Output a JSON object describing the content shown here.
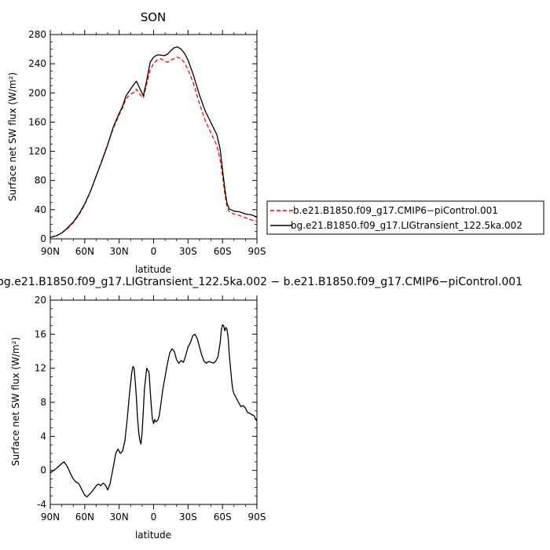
{
  "chart_data": [
    {
      "type": "line",
      "title": "SON",
      "xlabel": "latitude",
      "ylabel": "Surface net SW flux (W/m²)",
      "ylim": [
        0,
        280
      ],
      "yticks": [
        0,
        40,
        80,
        120,
        160,
        200,
        240,
        280
      ],
      "xlim": [
        90,
        -90
      ],
      "xticks": [
        {
          "value": 90,
          "label": "90N"
        },
        {
          "value": 60,
          "label": "60N"
        },
        {
          "value": 30,
          "label": "30N"
        },
        {
          "value": 0,
          "label": "0"
        },
        {
          "value": -30,
          "label": "30S"
        },
        {
          "value": -60,
          "label": "60S"
        },
        {
          "value": -90,
          "label": "90S"
        }
      ],
      "grid": false,
      "legend_position": "right",
      "series": [
        {
          "name": "b.e21.B1850.f09_g17.CMIP6−piControl.001",
          "color": "#ff0000",
          "dash": "dashed",
          "x": [
            90,
            85,
            80,
            75,
            70,
            65,
            60,
            55,
            50,
            45,
            40,
            35,
            30,
            27,
            24,
            21,
            18,
            15,
            12,
            9,
            6,
            3,
            0,
            -3,
            -6,
            -9,
            -12,
            -15,
            -18,
            -21,
            -24,
            -27,
            -30,
            -35,
            -40,
            -45,
            -50,
            -55,
            -58,
            -60,
            -62,
            -64,
            -66,
            -70,
            -75,
            -80,
            -85,
            -90
          ],
          "y": [
            2,
            4,
            8,
            14,
            22,
            33,
            47,
            65,
            86,
            108,
            130,
            152,
            170,
            180,
            192,
            197,
            200,
            205,
            198,
            193,
            212,
            232,
            240,
            245,
            247,
            244,
            242,
            245,
            247,
            249,
            247,
            241,
            232,
            212,
            185,
            162,
            145,
            128,
            108,
            86,
            62,
            44,
            37,
            34,
            32,
            29,
            26,
            24
          ]
        },
        {
          "name": "bg.e21.B1850.f09_g17.LIGtransient_122.5ka.002",
          "color": "#000000",
          "dash": "solid",
          "x": [
            90,
            85,
            80,
            75,
            70,
            65,
            60,
            55,
            50,
            45,
            40,
            35,
            30,
            27,
            24,
            21,
            18,
            15,
            12,
            9,
            6,
            3,
            0,
            -3,
            -6,
            -9,
            -12,
            -15,
            -18,
            -21,
            -24,
            -27,
            -30,
            -35,
            -40,
            -45,
            -50,
            -55,
            -58,
            -60,
            -62,
            -64,
            -66,
            -70,
            -75,
            -80,
            -85,
            -90
          ],
          "y": [
            2,
            4,
            8,
            15,
            23,
            34,
            48,
            65,
            86,
            107,
            129,
            154,
            172,
            182,
            196,
            203,
            210,
            216,
            206,
            196,
            217,
            242,
            249,
            252,
            252,
            251,
            253,
            258,
            262,
            263,
            260,
            254,
            245,
            223,
            197,
            175,
            159,
            143,
            123,
            95,
            69,
            48,
            41,
            38,
            37,
            34,
            33,
            30
          ]
        }
      ]
    },
    {
      "type": "line",
      "title": "bg.e21.B1850.f09_g17.LIGtransient_122.5ka.002 − b.e21.B1850.f09_g17.CMIP6−piControl.001",
      "xlabel": "latitude",
      "ylabel": "Surface net SW flux (W/m²)",
      "ylim": [
        -4,
        20
      ],
      "yticks": [
        -4,
        0,
        4,
        8,
        12,
        16,
        20
      ],
      "xlim": [
        90,
        -90
      ],
      "xticks": [
        {
          "value": 90,
          "label": "90N"
        },
        {
          "value": 60,
          "label": "60N"
        },
        {
          "value": 30,
          "label": "30N"
        },
        {
          "value": 0,
          "label": "0"
        },
        {
          "value": -30,
          "label": "30S"
        },
        {
          "value": -60,
          "label": "60S"
        },
        {
          "value": -90,
          "label": "90S"
        }
      ],
      "grid": false,
      "series": [
        {
          "color": "#000000",
          "dash": "solid",
          "x": [
            90,
            85,
            80,
            78,
            75,
            72,
            70,
            68,
            65,
            62,
            60,
            58,
            55,
            52,
            50,
            48,
            46,
            44,
            42,
            40,
            38,
            35,
            33,
            31,
            29,
            27,
            25,
            23,
            21,
            19,
            18,
            17,
            16,
            15,
            14,
            13,
            12,
            11,
            10,
            9,
            8,
            6,
            4,
            3,
            2,
            1,
            0,
            -1,
            -2,
            -3,
            -4,
            -5,
            -6,
            -8,
            -10,
            -12,
            -14,
            -16,
            -18,
            -20,
            -22,
            -24,
            -26,
            -28,
            -30,
            -32,
            -34,
            -36,
            -38,
            -40,
            -42,
            -44,
            -46,
            -48,
            -50,
            -52,
            -54,
            -56,
            -58,
            -59,
            -60,
            -61,
            -62,
            -63,
            -64,
            -65,
            -66,
            -67,
            -68,
            -69,
            -70,
            -72,
            -74,
            -76,
            -78,
            -80,
            -82,
            -84,
            -86,
            -87,
            -88,
            -89,
            -90
          ],
          "y": [
            -0.3,
            0.2,
            0.8,
            1.0,
            0.4,
            -0.5,
            -1.0,
            -1.3,
            -1.6,
            -2.4,
            -2.9,
            -3.1,
            -2.7,
            -2.2,
            -1.8,
            -1.6,
            -1.8,
            -1.5,
            -1.7,
            -2.3,
            -1.6,
            0.5,
            2.0,
            2.5,
            2.0,
            2.3,
            3.5,
            6.0,
            9.0,
            11.5,
            12.2,
            12.0,
            10.5,
            8.5,
            6.2,
            4.5,
            3.5,
            3.1,
            4.5,
            7.0,
            9.5,
            12.0,
            11.5,
            9.5,
            7.5,
            6.0,
            5.5,
            6.0,
            5.7,
            5.8,
            6.0,
            6.5,
            7.5,
            9.5,
            11.0,
            12.5,
            13.8,
            14.3,
            14.0,
            13.0,
            12.6,
            12.9,
            12.7,
            13.5,
            14.5,
            15.0,
            15.8,
            16.0,
            15.5,
            14.5,
            13.5,
            12.8,
            12.6,
            12.8,
            12.7,
            12.6,
            12.8,
            13.3,
            15.0,
            16.5,
            17.1,
            17.0,
            16.4,
            16.8,
            16.5,
            15.5,
            13.5,
            12.0,
            10.5,
            9.5,
            9.0,
            8.5,
            8.0,
            7.5,
            7.6,
            7.3,
            6.8,
            6.7,
            6.5,
            6.5,
            6.3,
            6.0,
            5.8
          ]
        }
      ]
    }
  ]
}
